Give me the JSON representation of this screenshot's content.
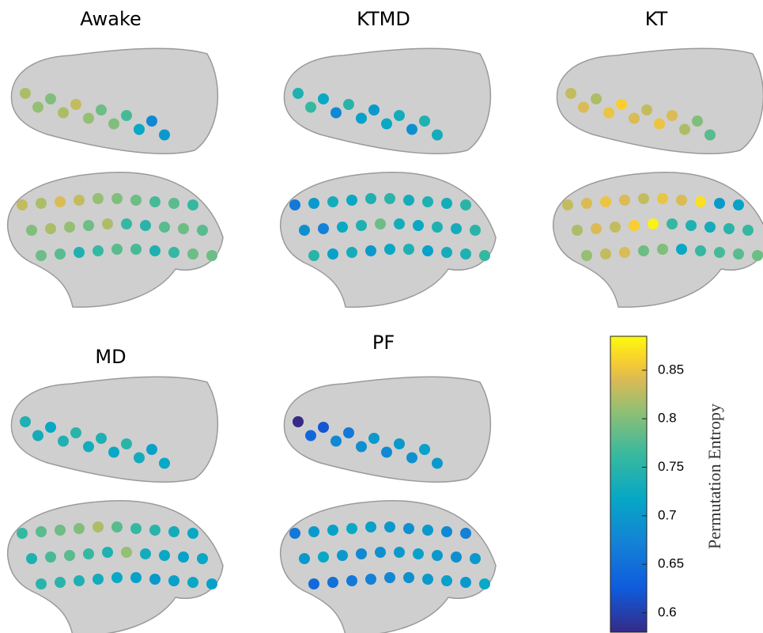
{
  "panels": [
    {
      "title": "Awake",
      "medial": [
        0.82,
        0.81,
        0.8,
        0.82,
        0.83,
        0.81,
        0.79,
        0.8,
        0.77,
        0.72,
        0.68,
        0.7
      ],
      "lateral": [
        0.83,
        0.82,
        0.84,
        0.83,
        0.81,
        0.8,
        0.79,
        0.77,
        0.78,
        0.76,
        0.8,
        0.82,
        0.81,
        0.79,
        0.82,
        0.76,
        0.75,
        0.78,
        0.79,
        0.78,
        0.79,
        0.78,
        0.74,
        0.76,
        0.78,
        0.77,
        0.74,
        0.76,
        0.79,
        0.79
      ]
    },
    {
      "title": "KTMD",
      "medial": [
        0.74,
        0.76,
        0.72,
        0.68,
        0.75,
        0.71,
        0.7,
        0.72,
        0.73,
        0.69,
        0.74,
        0.73
      ],
      "lateral": [
        0.66,
        0.7,
        0.73,
        0.72,
        0.74,
        0.75,
        0.73,
        0.74,
        0.73,
        0.75,
        0.69,
        0.67,
        0.72,
        0.74,
        0.79,
        0.73,
        0.72,
        0.74,
        0.73,
        0.75,
        0.75,
        0.71,
        0.73,
        0.7,
        0.72,
        0.74,
        0.71,
        0.73,
        0.74,
        0.76
      ]
    },
    {
      "title": "KT",
      "medial": [
        0.83,
        0.84,
        0.82,
        0.85,
        0.86,
        0.84,
        0.83,
        0.85,
        0.84,
        0.82,
        0.8,
        0.78
      ],
      "lateral": [
        0.83,
        0.84,
        0.85,
        0.84,
        0.83,
        0.85,
        0.84,
        0.87,
        0.7,
        0.71,
        0.82,
        0.84,
        0.83,
        0.86,
        0.88,
        0.76,
        0.74,
        0.73,
        0.75,
        0.76,
        0.81,
        0.83,
        0.84,
        0.79,
        0.8,
        0.72,
        0.76,
        0.77,
        0.78,
        0.79
      ]
    },
    {
      "title": "MD",
      "medial": [
        0.74,
        0.73,
        0.72,
        0.74,
        0.75,
        0.73,
        0.74,
        0.72,
        0.75,
        0.73,
        0.71,
        0.72
      ],
      "lateral": [
        0.76,
        0.78,
        0.79,
        0.8,
        0.82,
        0.78,
        0.76,
        0.75,
        0.73,
        0.72,
        0.74,
        0.77,
        0.78,
        0.76,
        0.74,
        0.81,
        0.73,
        0.72,
        0.71,
        0.72,
        0.75,
        0.75,
        0.74,
        0.73,
        0.72,
        0.71,
        0.7,
        0.71,
        0.72,
        0.71
      ]
    },
    {
      "title": "PF",
      "medial": [
        0.58,
        0.64,
        0.62,
        0.68,
        0.66,
        0.69,
        0.7,
        0.68,
        0.7,
        0.69,
        0.71,
        0.7
      ],
      "lateral": [
        0.66,
        0.7,
        0.71,
        0.72,
        0.71,
        0.7,
        0.69,
        0.7,
        0.68,
        0.67,
        0.7,
        0.72,
        0.7,
        0.68,
        0.69,
        0.7,
        0.71,
        0.7,
        0.69,
        0.7,
        0.64,
        0.65,
        0.66,
        0.67,
        0.68,
        0.69,
        0.7,
        0.71,
        0.7,
        0.72
      ]
    }
  ],
  "colorbar": {
    "label": "Permutation Entropy",
    "lim": [
      0.58,
      0.885
    ],
    "ticks": [
      0.6,
      0.65,
      0.7,
      0.75,
      0.8,
      0.85
    ]
  }
}
